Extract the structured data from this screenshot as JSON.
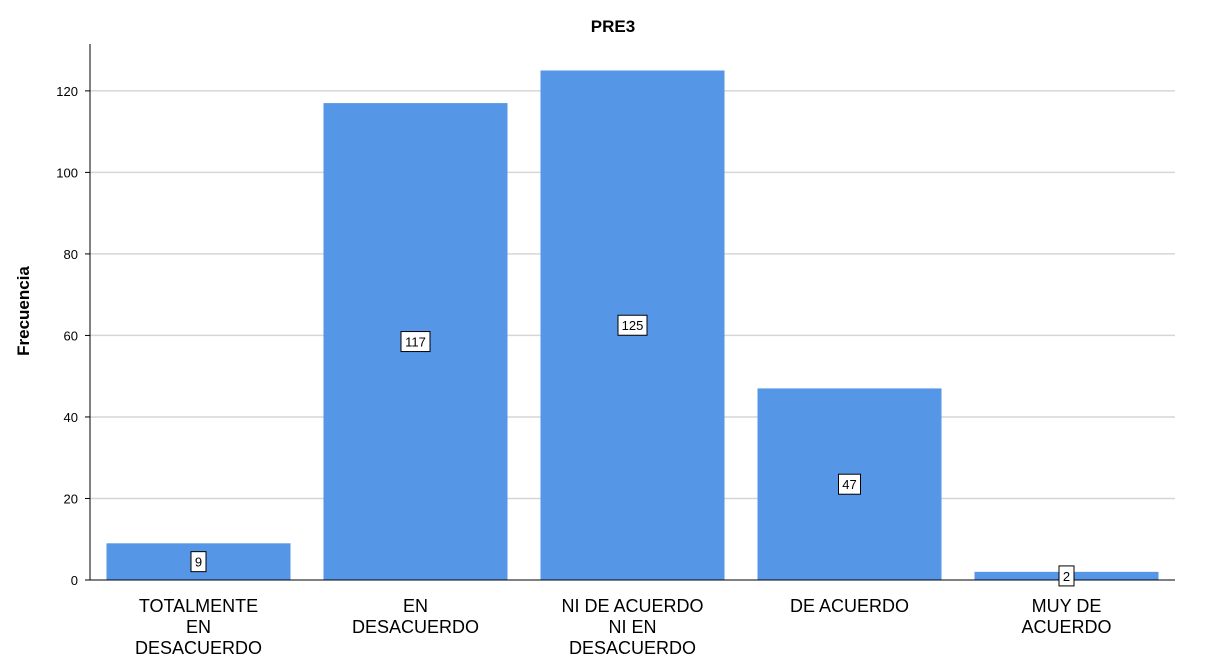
{
  "chart_data": {
    "type": "bar",
    "title": "PRE3",
    "xlabel": "",
    "ylabel": "Frecuencia",
    "categories": [
      [
        "TOTALMENTE",
        "EN",
        "DESACUERDO"
      ],
      [
        "EN",
        "DESACUERDO"
      ],
      [
        "NI DE ACUERDO",
        "NI EN",
        "DESACUERDO"
      ],
      [
        "DE ACUERDO"
      ],
      [
        "MUY DE",
        "ACUERDO"
      ]
    ],
    "values": [
      9,
      117,
      125,
      47,
      2
    ],
    "data_labels": [
      "9",
      "117",
      "125",
      "47",
      "2"
    ],
    "yticks": [
      0,
      20,
      40,
      60,
      80,
      100,
      120
    ],
    "ytick_labels": [
      "0",
      "20",
      "40",
      "60",
      "80",
      "100",
      "120"
    ],
    "ylim": [
      0,
      131.5
    ],
    "grid": true,
    "bar_color": "#5596e6",
    "grid_color": "#d6d6d6"
  }
}
